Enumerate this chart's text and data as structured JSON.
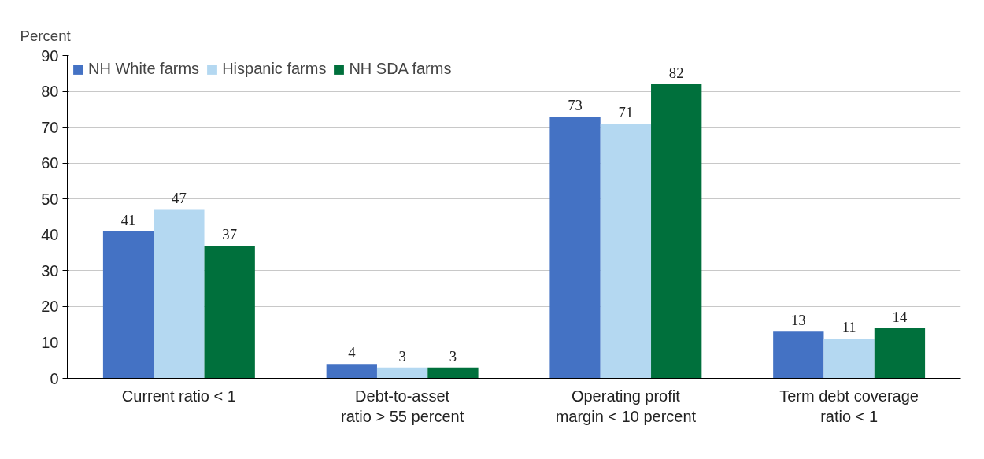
{
  "chart_data": {
    "type": "bar",
    "ylabel": "Percent",
    "categories": [
      "Current ratio < 1",
      "Debt-to-asset\nratio > 55 percent",
      "Operating profit\nmargin < 10 percent",
      "Term debt coverage\nratio < 1"
    ],
    "series": [
      {
        "name": "NH White farms",
        "color": "#4472c4",
        "values": [
          41,
          4,
          73,
          13
        ]
      },
      {
        "name": "Hispanic farms",
        "color": "#b4d8f1",
        "values": [
          47,
          3,
          71,
          11
        ]
      },
      {
        "name": "NH SDA farms",
        "color": "#00703c",
        "values": [
          37,
          3,
          82,
          14
        ]
      }
    ],
    "ylim": [
      0,
      90
    ],
    "yticks": [
      0,
      10,
      20,
      30,
      40,
      50,
      60,
      70,
      80,
      90
    ],
    "grid": "y",
    "legend": "top left",
    "data_labels": true
  }
}
